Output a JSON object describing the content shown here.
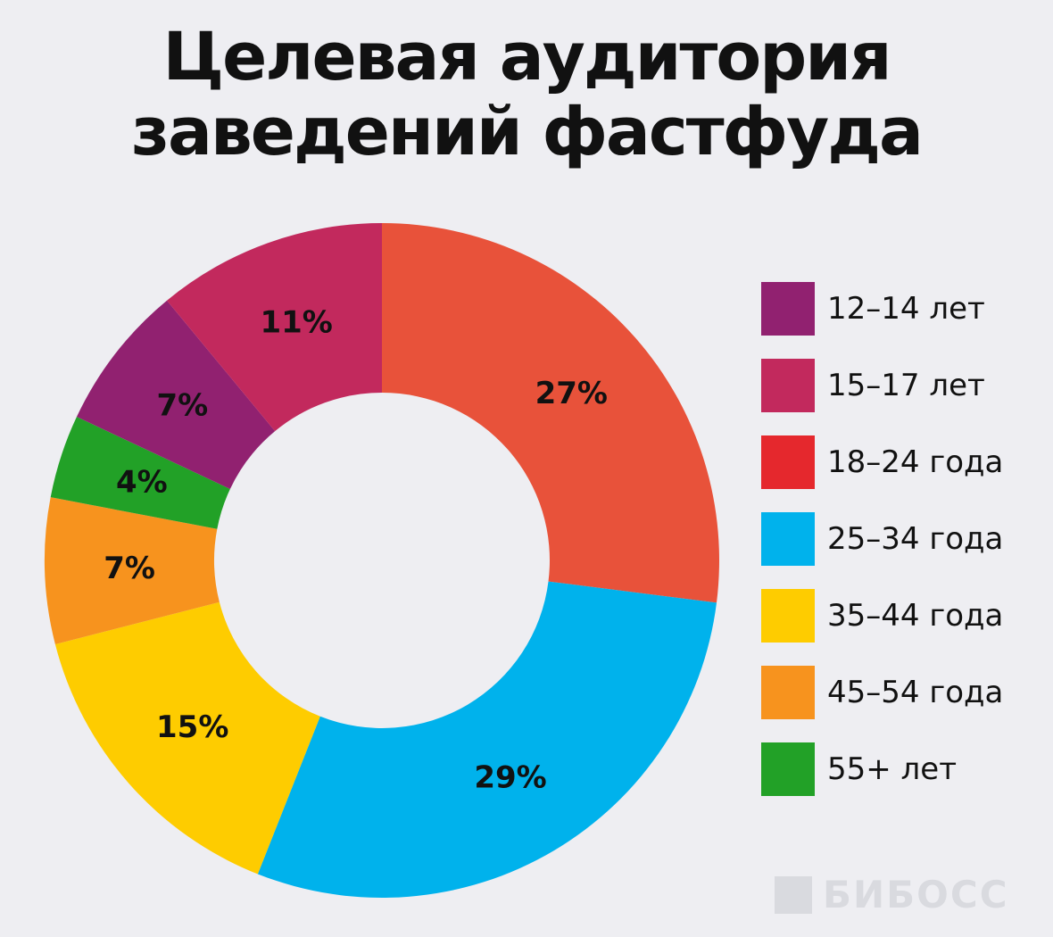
{
  "chart_data": {
    "type": "pie",
    "style": "donut",
    "title": "Целевая аудитория заведений фастфуда",
    "title_lines": [
      "Целевая аудитория",
      "заведений фастфуда"
    ],
    "slices": [
      {
        "category": "18–24 года",
        "value": 27,
        "label": "27%",
        "color": "#e8523a"
      },
      {
        "category": "25–34 года",
        "value": 29,
        "label": "29%",
        "color": "#00b2ec"
      },
      {
        "category": "35–44 года",
        "value": 15,
        "label": "15%",
        "color": "#fecc00"
      },
      {
        "category": "45–54 года",
        "value": 7,
        "label": "7%",
        "color": "#f7931e"
      },
      {
        "category": "55+ лет",
        "value": 4,
        "label": "4%",
        "color": "#22a127"
      },
      {
        "category": "12–14 лет",
        "value": 7,
        "label": "7%",
        "color": "#912170"
      },
      {
        "category": "15–17 лет",
        "value": 11,
        "label": "11%",
        "color": "#c2295d"
      }
    ],
    "legend": {
      "position": "right",
      "items": [
        {
          "label": "12–14 лет",
          "color": "#912170"
        },
        {
          "label": "15–17 лет",
          "color": "#c2295d"
        },
        {
          "label": "18–24 года",
          "color": "#e5282d"
        },
        {
          "label": "25–34 года",
          "color": "#00b2ec"
        },
        {
          "label": "35–44 года",
          "color": "#fecc00"
        },
        {
          "label": "45–54 года",
          "color": "#f7931e"
        },
        {
          "label": "55+ лет",
          "color": "#22a127"
        }
      ]
    }
  },
  "watermark": {
    "text": "БИБОСС"
  }
}
